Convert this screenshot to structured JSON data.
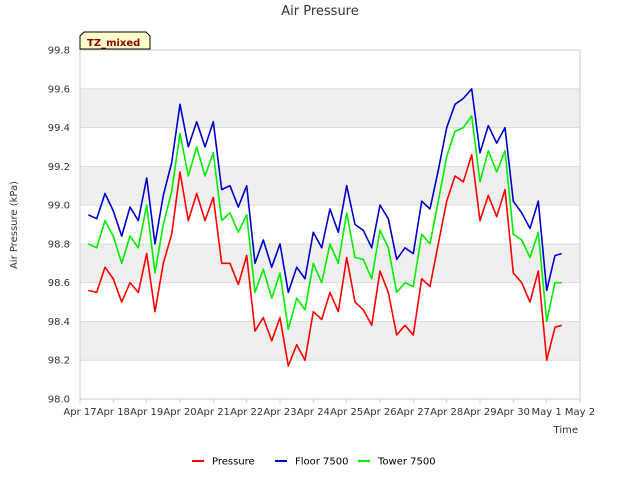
{
  "chart_data": {
    "type": "line",
    "title": "Air Pressure",
    "xlabel": "Time",
    "ylabel": "Air Pressure (kPa)",
    "badge": "TZ_mixed",
    "ylim": [
      98.0,
      99.8
    ],
    "yticks": [
      "98.0",
      "98.2",
      "98.4",
      "98.6",
      "98.8",
      "99.0",
      "99.2",
      "99.4",
      "99.6",
      "99.8"
    ],
    "xlim": [
      0,
      15
    ],
    "xticks": [
      "Apr 17",
      "Apr 18",
      "Apr 19",
      "Apr 20",
      "Apr 21",
      "Apr 22",
      "Apr 23",
      "Apr 24",
      "Apr 25",
      "Apr 26",
      "Apr 27",
      "Apr 28",
      "Apr 29",
      "Apr 30",
      "May 1",
      "May 2"
    ],
    "grid": true,
    "legend_position": "bottom",
    "x": [
      0.25,
      0.5,
      0.75,
      1.0,
      1.25,
      1.5,
      1.75,
      2.0,
      2.25,
      2.5,
      2.75,
      3.0,
      3.25,
      3.5,
      3.75,
      4.0,
      4.25,
      4.5,
      4.75,
      5.0,
      5.25,
      5.5,
      5.75,
      6.0,
      6.25,
      6.5,
      6.75,
      7.0,
      7.25,
      7.5,
      7.75,
      8.0,
      8.25,
      8.5,
      8.75,
      9.0,
      9.25,
      9.5,
      9.75,
      10.0,
      10.25,
      10.5,
      10.75,
      11.0,
      11.25,
      11.5,
      11.75,
      12.0,
      12.25,
      12.5,
      12.75,
      13.0,
      13.25,
      13.5,
      13.75,
      14.0,
      14.25,
      14.45
    ],
    "series": [
      {
        "name": "Pressure",
        "color": "#ff0000",
        "values": [
          98.56,
          98.55,
          98.68,
          98.62,
          98.5,
          98.6,
          98.55,
          98.75,
          98.45,
          98.7,
          98.85,
          99.17,
          98.92,
          99.06,
          98.92,
          99.04,
          98.7,
          98.7,
          98.59,
          98.74,
          98.35,
          98.42,
          98.3,
          98.42,
          98.17,
          98.28,
          98.2,
          98.45,
          98.41,
          98.55,
          98.45,
          98.73,
          98.5,
          98.46,
          98.38,
          98.66,
          98.55,
          98.33,
          98.38,
          98.33,
          98.62,
          98.58,
          98.8,
          99.02,
          99.15,
          99.12,
          99.26,
          98.92,
          99.05,
          98.94,
          99.08,
          98.65,
          98.6,
          98.5,
          98.66,
          98.2,
          98.37,
          98.38
        ]
      },
      {
        "name": "Floor 7500",
        "color": "#0000cc",
        "values": [
          98.95,
          98.93,
          99.06,
          98.97,
          98.84,
          98.99,
          98.92,
          99.14,
          98.8,
          99.05,
          99.22,
          99.52,
          99.3,
          99.43,
          99.3,
          99.43,
          99.08,
          99.1,
          98.99,
          99.1,
          98.7,
          98.82,
          98.68,
          98.8,
          98.55,
          98.68,
          98.62,
          98.86,
          98.78,
          98.98,
          98.86,
          99.1,
          98.9,
          98.87,
          98.78,
          99.0,
          98.93,
          98.72,
          98.78,
          98.75,
          99.02,
          98.98,
          99.18,
          99.4,
          99.52,
          99.55,
          99.6,
          99.27,
          99.41,
          99.32,
          99.4,
          99.02,
          98.96,
          98.88,
          99.02,
          98.56,
          98.74,
          98.75
        ]
      },
      {
        "name": "Tower 7500",
        "color": "#00ee00",
        "values": [
          98.8,
          98.78,
          98.92,
          98.84,
          98.7,
          98.84,
          98.78,
          99.0,
          98.65,
          98.9,
          99.07,
          99.37,
          99.15,
          99.3,
          99.15,
          99.27,
          98.92,
          98.96,
          98.86,
          98.95,
          98.55,
          98.67,
          98.52,
          98.65,
          98.36,
          98.52,
          98.46,
          98.7,
          98.6,
          98.8,
          98.7,
          98.96,
          98.73,
          98.72,
          98.62,
          98.87,
          98.78,
          98.55,
          98.6,
          98.58,
          98.85,
          98.8,
          99.02,
          99.25,
          99.38,
          99.4,
          99.46,
          99.12,
          99.28,
          99.17,
          99.28,
          98.85,
          98.82,
          98.73,
          98.86,
          98.4,
          98.6,
          98.6
        ]
      }
    ]
  },
  "colors": {
    "plot_background": "#ffffff",
    "band": "#efefef",
    "grid": "#dddddd",
    "badge_fill": "#ffffcc"
  }
}
